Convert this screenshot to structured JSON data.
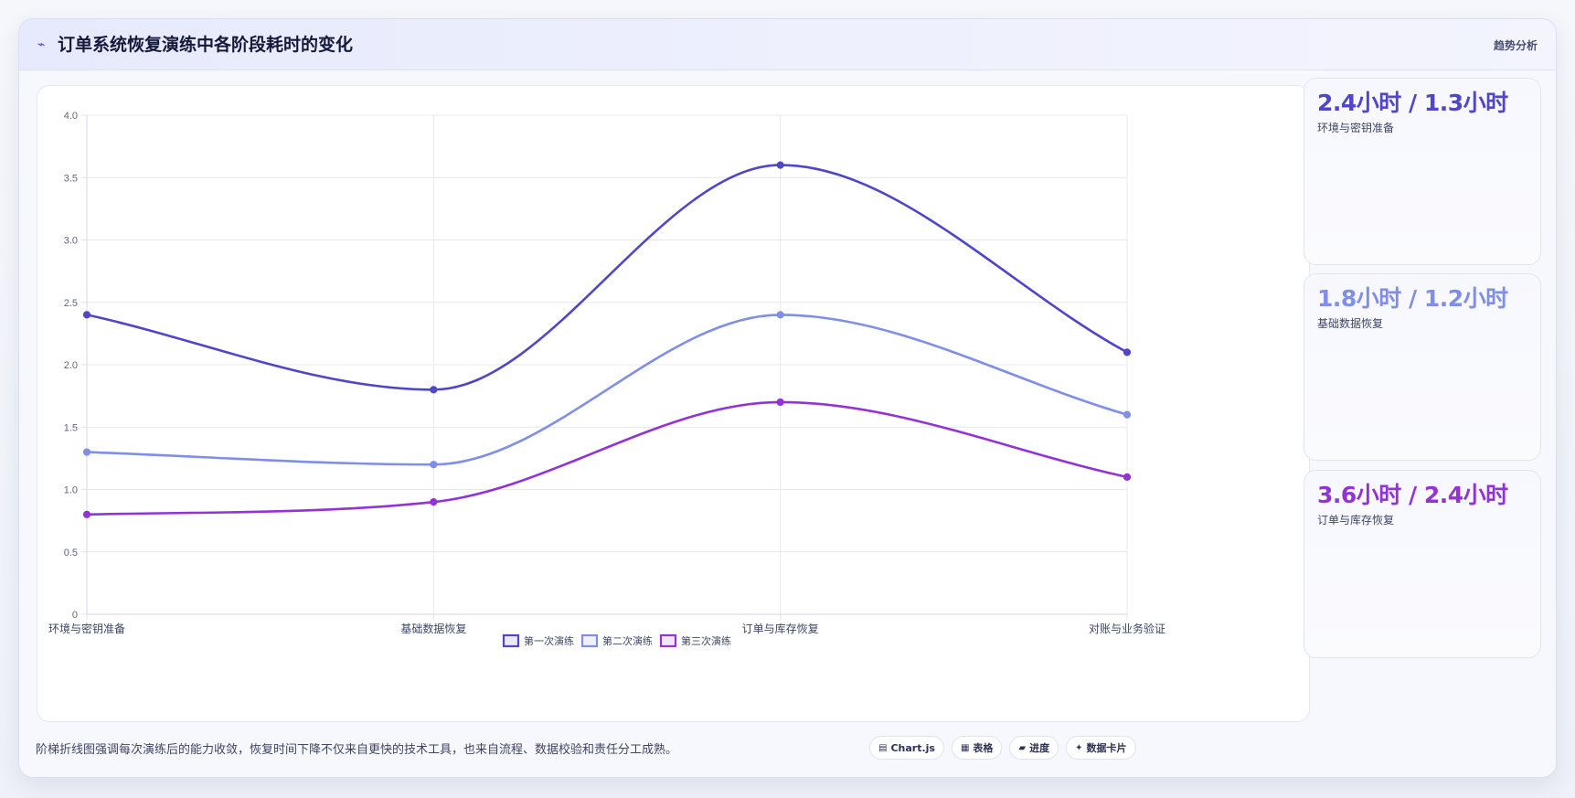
{
  "header": {
    "icon": "trend-line-icon",
    "title": "订单系统恢复演练中各阶段耗时的变化",
    "tag": "趋势分析"
  },
  "chart_data": {
    "type": "line",
    "title": "",
    "xlabel": "",
    "ylabel": "",
    "categories": [
      "环境与密钥准备",
      "基础数据恢复",
      "订单与库存恢复",
      "对账与业务验证"
    ],
    "ylim": [
      0,
      4.0
    ],
    "yticks": [
      "0",
      "0.5",
      "1.0",
      "1.5",
      "2.0",
      "2.5",
      "3.0",
      "3.5",
      "4.0"
    ],
    "grid": true,
    "legend_position": "bottom",
    "series": [
      {
        "name": "第一次演练",
        "color": "#4f46c8",
        "values": [
          2.4,
          1.8,
          3.6,
          2.1
        ]
      },
      {
        "name": "第二次演练",
        "color": "#7f8ee6",
        "values": [
          1.3,
          1.2,
          2.4,
          1.6
        ]
      },
      {
        "name": "第三次演练",
        "color": "#9333d6",
        "values": [
          0.8,
          0.9,
          1.7,
          1.1
        ]
      }
    ]
  },
  "stats": [
    {
      "value": "2.4小时 / 1.3小时",
      "label": "环境与密钥准备",
      "color": "#4f46c8"
    },
    {
      "value": "1.8小时 / 1.2小时",
      "label": "基础数据恢复",
      "color": "#7f8ee6"
    },
    {
      "value": "3.6小时 / 2.4小时",
      "label": "订单与库存恢复",
      "color": "#9333d6"
    }
  ],
  "footer": {
    "text": "阶梯折线图强调每次演练后的能力收敛，恢复时间下降不仅来自更快的技术工具，也来自流程、数据校验和责任分工成熟。",
    "chips": [
      {
        "icon": "chart-icon",
        "glyph": "▤",
        "label": "Chart.js"
      },
      {
        "icon": "table-icon",
        "glyph": "▦",
        "label": "表格"
      },
      {
        "icon": "progress-icon",
        "glyph": "▰",
        "label": "进度"
      },
      {
        "icon": "sparkle-icon",
        "glyph": "✦",
        "label": "数据卡片"
      }
    ]
  }
}
